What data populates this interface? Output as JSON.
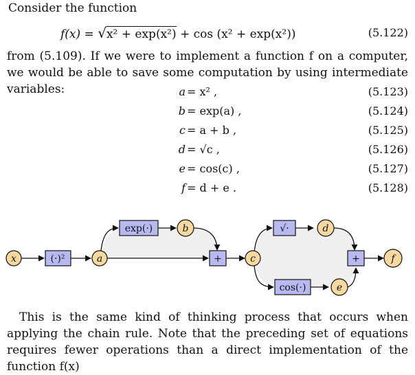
{
  "intro": "Consider the function",
  "main_eq": {
    "lhs": "f(x) =",
    "sqrt_body": "x² + exp(x²)",
    "rest": "+ cos (x² + exp(x²))",
    "number": "(5.122)"
  },
  "para1": "from (5.109). If we were to implement a function f on a computer, we would be able to save some computation by using intermediate variables:",
  "equations": [
    {
      "lhs": "a",
      "rhs": "= x² ,",
      "number": "(5.123)"
    },
    {
      "lhs": "b",
      "rhs": "= exp(a) ,",
      "number": "(5.124)"
    },
    {
      "lhs": "c",
      "rhs": "= a + b ,",
      "number": "(5.125)"
    },
    {
      "lhs": "d",
      "rhs": "= √c ,",
      "number": "(5.126)"
    },
    {
      "lhs": "e",
      "rhs": "= cos(c) ,",
      "number": "(5.127)"
    },
    {
      "lhs": "f",
      "rhs": "= d + e .",
      "number": "(5.128)"
    }
  ],
  "graph": {
    "nodes": {
      "x": "x",
      "a": "a",
      "b": "b",
      "c": "c",
      "d": "d",
      "e": "e",
      "f": "f"
    },
    "ops": {
      "square": "(·)²",
      "exp": "exp(·)",
      "plus1": "+",
      "sqrt": "√·",
      "cos": "cos(·)",
      "plus2": "+"
    }
  },
  "para2": "This is the same kind of thinking process that occurs when applying the chain rule. Note that the preceding set of equations requires fewer operations than a direct implementation of the function f(x)"
}
